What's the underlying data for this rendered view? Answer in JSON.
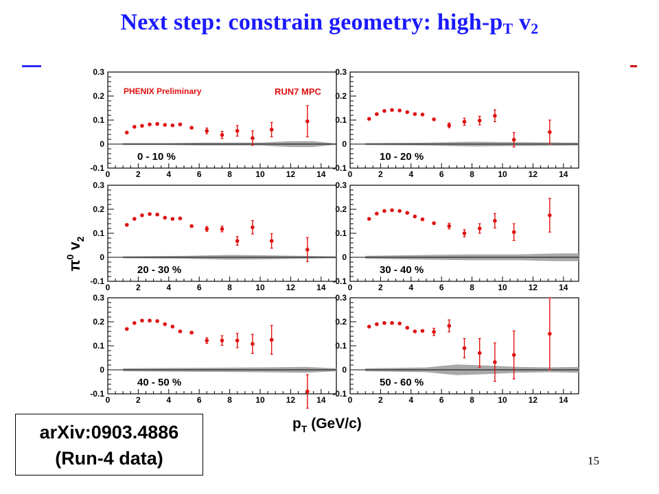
{
  "slide": {
    "title_main": "Next step: constrain geometry: high-p",
    "title_sub": "T",
    "title_end": " v",
    "title_sub2": "2",
    "reference_line1": "arXiv:0903.4886",
    "reference_line2": "(Run-4 data)",
    "page_number": "15",
    "accent_colors": [
      "#2a2aff",
      "#d01010"
    ]
  },
  "labels": {
    "preliminary": "PHENIX Preliminary",
    "run": "RUN7 MPC",
    "ylabel_main": "π",
    "ylabel_sup": "0",
    "ylabel_v": " v",
    "ylabel_sub": "2",
    "xlabel_main": "p",
    "xlabel_sub": "T",
    "xlabel_unit": " (GeV/c)"
  },
  "chart_data": {
    "type": "scatter",
    "xlim": [
      0,
      15
    ],
    "ylim": [
      -0.1,
      0.3
    ],
    "xticks": [
      0,
      2,
      4,
      6,
      8,
      10,
      12,
      14
    ],
    "yticks": [
      -0.1,
      0,
      0.1,
      0.2,
      0.3
    ],
    "xtick_labels": [
      "0",
      "2",
      "4",
      "6",
      "8",
      "10",
      "12",
      "14"
    ],
    "ytick_labels": [
      "-0.1",
      "0",
      "0.1",
      "0.2",
      "0.3"
    ],
    "marker_color": "#e01010",
    "band_color": "#a8a8a8",
    "panels": [
      {
        "centrality": "0 - 10 %",
        "points": [
          [
            1.25,
            0.048,
            0
          ],
          [
            1.75,
            0.072,
            0
          ],
          [
            2.25,
            0.076,
            0
          ],
          [
            2.75,
            0.082,
            0
          ],
          [
            3.25,
            0.084,
            0
          ],
          [
            3.75,
            0.08,
            0
          ],
          [
            4.25,
            0.078,
            0
          ],
          [
            4.75,
            0.082,
            0
          ],
          [
            5.5,
            0.068,
            0
          ],
          [
            6.5,
            0.055,
            0.012
          ],
          [
            7.5,
            0.038,
            0.015
          ],
          [
            8.5,
            0.055,
            0.022
          ],
          [
            9.5,
            0.025,
            0.03
          ],
          [
            10.75,
            0.06,
            0.03
          ],
          [
            13.1,
            0.095,
            0.065
          ]
        ],
        "band": [
          [
            1,
            0.004
          ],
          [
            4,
            0.004
          ],
          [
            6,
            0.006
          ],
          [
            10,
            0.006
          ],
          [
            12,
            0.012
          ],
          [
            13.5,
            0.012
          ],
          [
            15,
            0.002
          ]
        ]
      },
      {
        "centrality": "10 - 20 %",
        "points": [
          [
            1.25,
            0.105,
            0
          ],
          [
            1.75,
            0.125,
            0
          ],
          [
            2.25,
            0.138,
            0
          ],
          [
            2.75,
            0.142,
            0
          ],
          [
            3.25,
            0.14,
            0
          ],
          [
            3.75,
            0.133,
            0
          ],
          [
            4.25,
            0.125,
            0
          ],
          [
            4.75,
            0.123,
            0
          ],
          [
            5.5,
            0.103,
            0
          ],
          [
            6.5,
            0.078,
            0.01
          ],
          [
            7.5,
            0.093,
            0.015
          ],
          [
            8.5,
            0.098,
            0.018
          ],
          [
            9.5,
            0.118,
            0.025
          ],
          [
            10.75,
            0.018,
            0.03
          ],
          [
            13.1,
            0.05,
            0.05
          ]
        ],
        "band": [
          [
            1,
            0.004
          ],
          [
            5,
            0.006
          ],
          [
            8,
            0.01
          ],
          [
            11,
            0.008
          ],
          [
            15,
            0.006
          ]
        ]
      },
      {
        "centrality": "20 - 30 %",
        "points": [
          [
            1.25,
            0.135,
            0
          ],
          [
            1.75,
            0.16,
            0
          ],
          [
            2.25,
            0.175,
            0
          ],
          [
            2.75,
            0.18,
            0
          ],
          [
            3.25,
            0.178,
            0
          ],
          [
            3.75,
            0.165,
            0
          ],
          [
            4.25,
            0.16,
            0
          ],
          [
            4.75,
            0.162,
            0
          ],
          [
            5.5,
            0.13,
            0
          ],
          [
            6.5,
            0.118,
            0.01
          ],
          [
            7.5,
            0.118,
            0.012
          ],
          [
            8.5,
            0.068,
            0.018
          ],
          [
            9.5,
            0.125,
            0.028
          ],
          [
            10.75,
            0.068,
            0.03
          ],
          [
            13.1,
            0.032,
            0.05
          ]
        ],
        "band": [
          [
            1,
            0.004
          ],
          [
            5,
            0.006
          ],
          [
            8,
            0.01
          ],
          [
            11,
            0.008
          ],
          [
            15,
            0.004
          ]
        ]
      },
      {
        "centrality": "30 - 40 %",
        "points": [
          [
            1.25,
            0.16,
            0
          ],
          [
            1.75,
            0.182,
            0
          ],
          [
            2.25,
            0.193,
            0
          ],
          [
            2.75,
            0.196,
            0
          ],
          [
            3.25,
            0.193,
            0
          ],
          [
            3.75,
            0.185,
            0
          ],
          [
            4.25,
            0.17,
            0
          ],
          [
            4.75,
            0.158,
            0
          ],
          [
            5.5,
            0.142,
            0
          ],
          [
            6.5,
            0.13,
            0.012
          ],
          [
            7.5,
            0.1,
            0.015
          ],
          [
            8.5,
            0.12,
            0.02
          ],
          [
            9.5,
            0.152,
            0.03
          ],
          [
            10.75,
            0.105,
            0.035
          ],
          [
            13.1,
            0.175,
            0.07
          ]
        ],
        "band": [
          [
            1,
            0.006
          ],
          [
            5,
            0.01
          ],
          [
            8,
            0.012
          ],
          [
            11,
            0.012
          ],
          [
            13.5,
            0.016
          ],
          [
            15,
            0.016
          ]
        ]
      },
      {
        "centrality": "40 - 50 %",
        "points": [
          [
            1.25,
            0.17,
            0
          ],
          [
            1.75,
            0.195,
            0
          ],
          [
            2.25,
            0.205,
            0
          ],
          [
            2.75,
            0.205,
            0
          ],
          [
            3.25,
            0.203,
            0
          ],
          [
            3.75,
            0.19,
            0
          ],
          [
            4.25,
            0.18,
            0
          ],
          [
            4.75,
            0.16,
            0
          ],
          [
            5.5,
            0.155,
            0
          ],
          [
            6.5,
            0.122,
            0.012
          ],
          [
            7.5,
            0.122,
            0.02
          ],
          [
            8.5,
            0.122,
            0.03
          ],
          [
            9.5,
            0.108,
            0.04
          ],
          [
            10.75,
            0.125,
            0.06
          ],
          [
            13.1,
            -0.09,
            0.07
          ]
        ],
        "band": [
          [
            1,
            0.006
          ],
          [
            5,
            0.008
          ],
          [
            10,
            0.01
          ],
          [
            13,
            0.012
          ],
          [
            15,
            0.006
          ]
        ]
      },
      {
        "centrality": "50 - 60 %",
        "points": [
          [
            1.25,
            0.18,
            0
          ],
          [
            1.75,
            0.19,
            0
          ],
          [
            2.25,
            0.195,
            0
          ],
          [
            2.75,
            0.195,
            0
          ],
          [
            3.25,
            0.193,
            0
          ],
          [
            3.75,
            0.175,
            0
          ],
          [
            4.25,
            0.16,
            0
          ],
          [
            4.75,
            0.162,
            0
          ],
          [
            5.5,
            0.158,
            0.015
          ],
          [
            6.5,
            0.183,
            0.025
          ],
          [
            7.5,
            0.09,
            0.04
          ],
          [
            8.5,
            0.07,
            0.06
          ],
          [
            9.5,
            0.032,
            0.08
          ],
          [
            10.75,
            0.062,
            0.1
          ],
          [
            13.1,
            0.15,
            0.15
          ]
        ],
        "band": [
          [
            1,
            0.006
          ],
          [
            5,
            0.01
          ],
          [
            7,
            0.022
          ],
          [
            9,
            0.018
          ],
          [
            11,
            0.012
          ],
          [
            13,
            0.01
          ],
          [
            15,
            0.012
          ]
        ]
      }
    ]
  }
}
